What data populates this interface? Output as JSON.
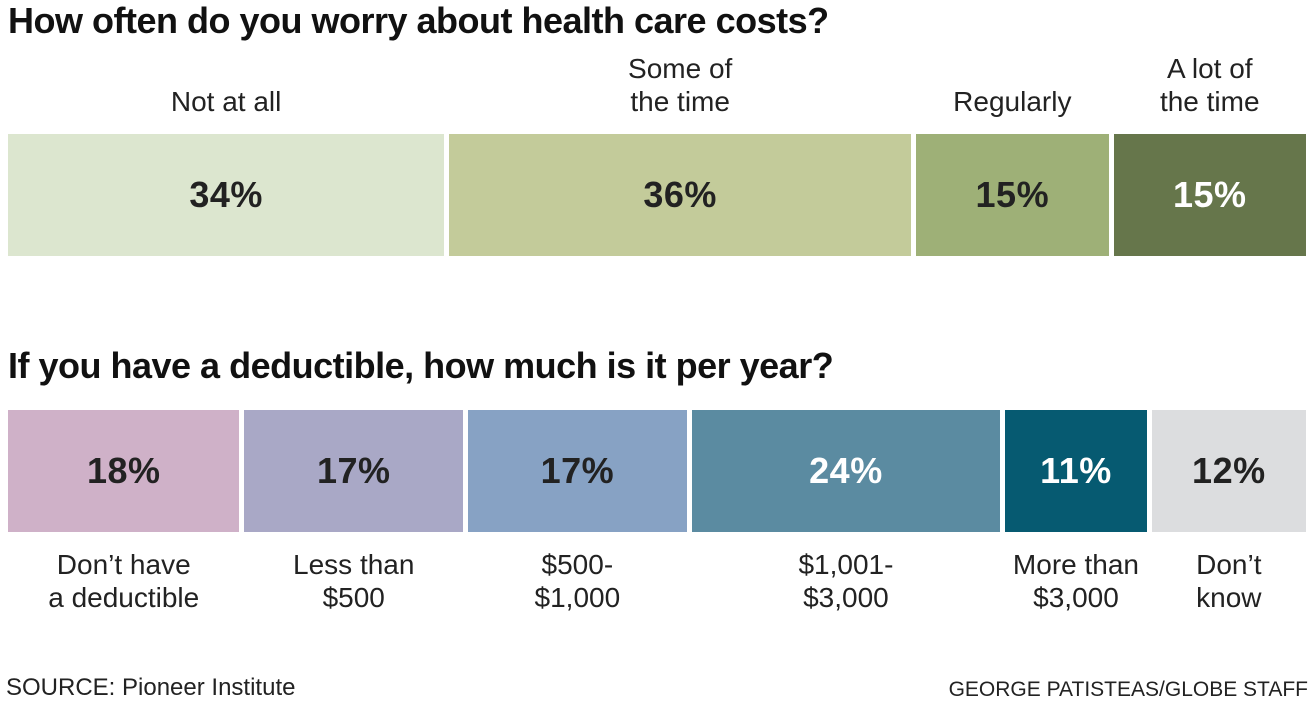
{
  "chart_data": [
    {
      "type": "bar",
      "title": "How often do you worry about health care costs?",
      "categories": [
        "Not at all",
        "Some of\nthe time",
        "Regularly",
        "A lot of\nthe time"
      ],
      "values": [
        34,
        36,
        15,
        15
      ],
      "value_labels": [
        "34%",
        "36%",
        "15%",
        "15%"
      ],
      "colors": [
        "#dce6cf",
        "#c3cb9a",
        "#9eb077",
        "#66764b"
      ],
      "text_colors": [
        "#222222",
        "#222222",
        "#222222",
        "#ffffff"
      ],
      "label_position": "top",
      "layout": "stacked-horizontal"
    },
    {
      "type": "bar",
      "title": "If you have a deductible, how much is it per year?",
      "categories": [
        "Don’t have\na deductible",
        "Less than\n$500",
        "$500-\n$1,000",
        "$1,001-\n$3,000",
        "More than\n$3,000",
        "Don’t\nknow"
      ],
      "values": [
        18,
        17,
        17,
        24,
        11,
        12
      ],
      "value_labels": [
        "18%",
        "17%",
        "17%",
        "24%",
        "11%",
        "12%"
      ],
      "colors": [
        "#cfb1c8",
        "#a9a8c6",
        "#87a2c4",
        "#5b8ba1",
        "#065a71",
        "#dcdddf"
      ],
      "text_colors": [
        "#222222",
        "#222222",
        "#222222",
        "#ffffff",
        "#ffffff",
        "#222222"
      ],
      "label_position": "bottom",
      "layout": "stacked-horizontal"
    }
  ],
  "footer": {
    "source": "SOURCE: Pioneer Institute",
    "credit": "GEORGE PATISTEAS/GLOBE STAFF"
  }
}
